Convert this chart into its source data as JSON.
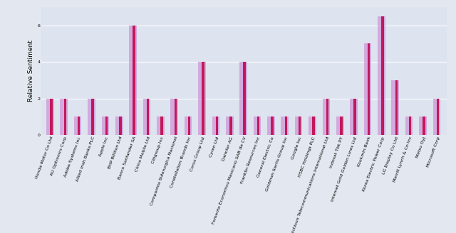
{
  "categories": [
    "Honda Motor Co Ltd",
    "AU Optronics Corp",
    "Adobe Systems Inc",
    "Allied Irish Banks PLC",
    "Apple Inc",
    "BHP Billiton Ltd",
    "Banco Santander SA",
    "China Mobile Ltd",
    "Citigroup Inc",
    "Companhia Siderurgica Nacional",
    "Constellation Brands Inc",
    "Corus Group Ltd",
    "Cyren Ltd",
    "Daimler AG",
    "Fomento Economico Mexicano SAB de CV",
    "Franklin Resources Inc",
    "General Electric Co",
    "Goldman Sachs Group Inc",
    "Google Inc",
    "HSBC Holdings PLC",
    "Hutchison Telecommunications International Ltd",
    "Indosat Tbk PT",
    "Internet Gold Golden Lines Ltd",
    "Kookmin Bank",
    "Korea Electric Power Corp",
    "LG Display Co Ltd",
    "Merrill Lynch & Co Inc",
    "Metso Oyj",
    "Microsoft Corp"
  ],
  "bar_pink": [
    2,
    2,
    1,
    2,
    1,
    1,
    6,
    2,
    1,
    2,
    1,
    4,
    1,
    1,
    4,
    1,
    1,
    1,
    1,
    1,
    2,
    1,
    2,
    5,
    6.5,
    3,
    1,
    1,
    2
  ],
  "bar_purple": [
    2,
    2,
    1,
    2,
    1,
    1,
    6,
    2,
    1,
    2,
    1,
    4,
    1,
    1,
    4,
    1,
    1,
    1,
    1,
    1,
    2,
    1,
    2,
    5,
    6.5,
    3,
    1,
    1,
    2
  ],
  "color_pink": "#c2185b",
  "color_purple": "#ce93d8",
  "ylabel": "Relative Sentiment",
  "bg_color": "#e3e8f0",
  "plot_bg": "#dde3ef",
  "ylim": [
    0,
    7
  ],
  "yticks": [
    0,
    2,
    4,
    6
  ],
  "figsize": [
    6.4,
    3.28
  ],
  "dpi": 100,
  "tick_fontsize": 4.5,
  "ylabel_fontsize": 6.5
}
